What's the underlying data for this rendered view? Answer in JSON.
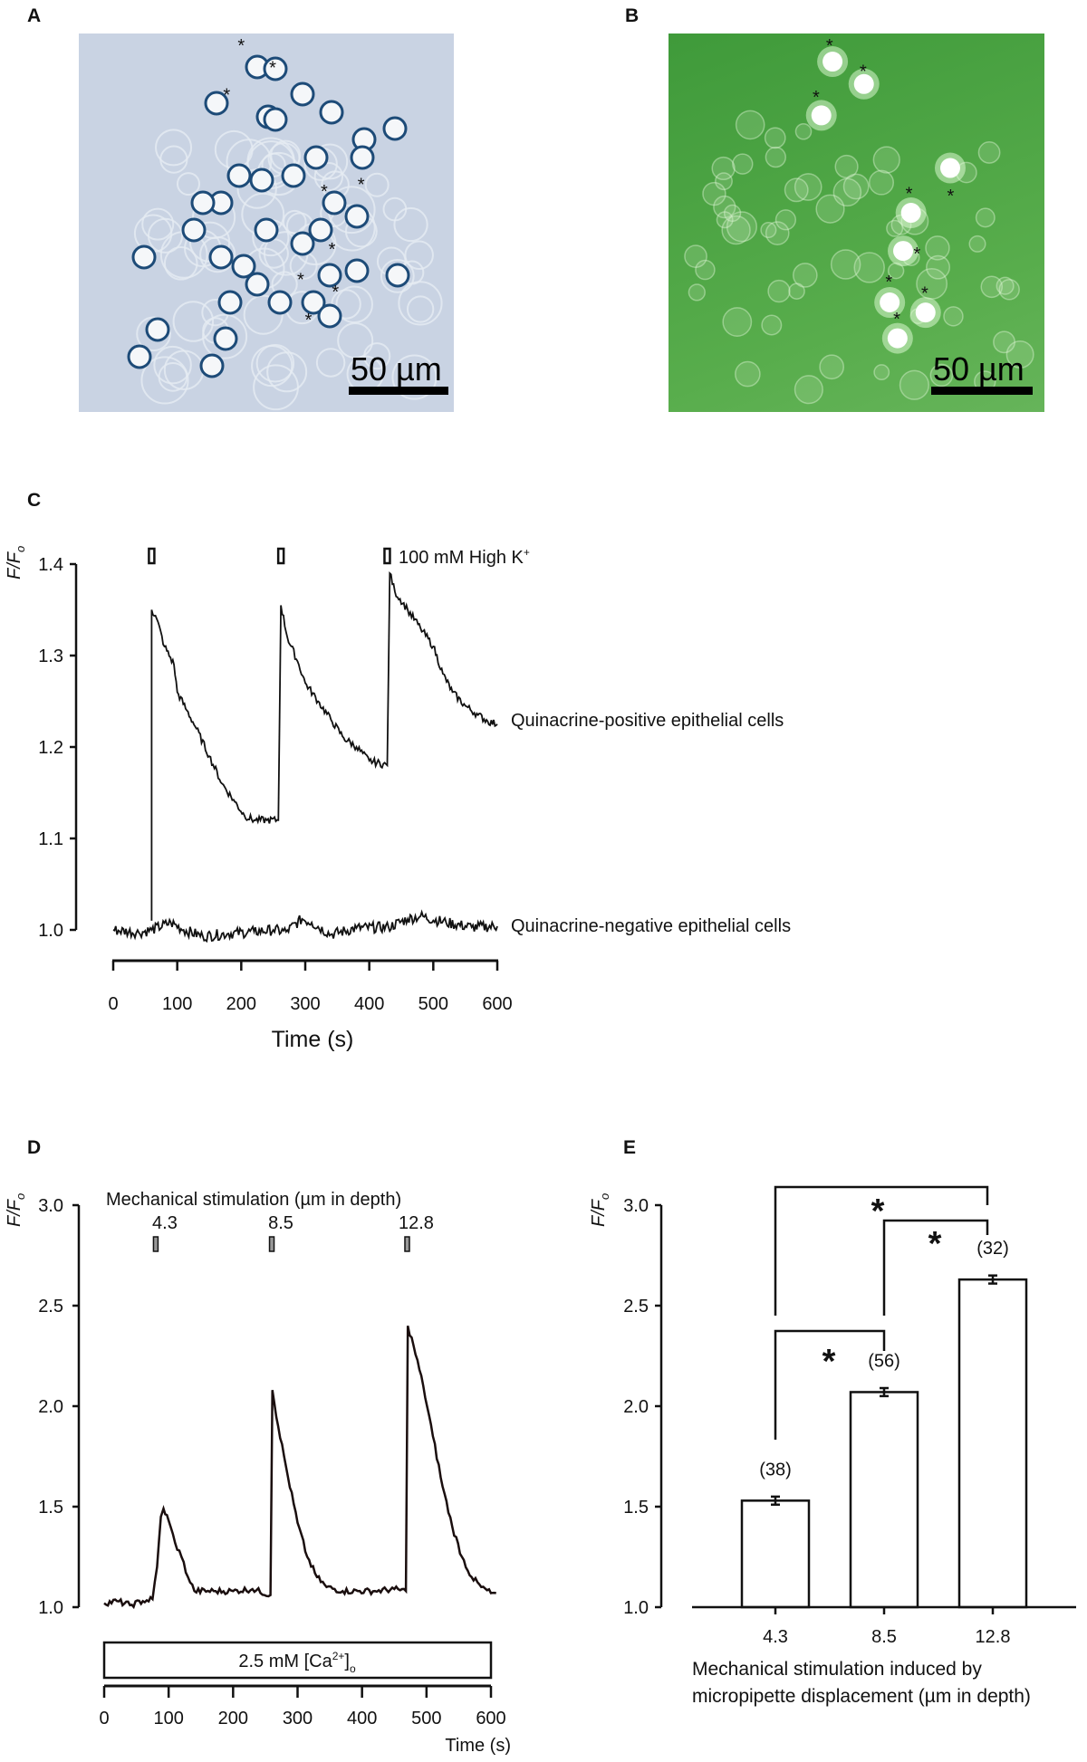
{
  "panels": {
    "A": {
      "label": "A",
      "scale_bar": "50 µm",
      "marker": "*"
    },
    "B": {
      "label": "B",
      "scale_bar": "50 µm",
      "marker": "*"
    },
    "C": {
      "label": "C"
    },
    "D": {
      "label": "D"
    },
    "E": {
      "label": "E"
    }
  },
  "colors": {
    "line": "#111111",
    "photo_A_bg": "#c9d3e3",
    "photo_B_bg": "#4fa545"
  },
  "chart_data": [
    {
      "id": "C",
      "type": "line",
      "ylabel": "F/F",
      "ylabel_sub": "o",
      "xlabel": "Time (s)",
      "xlim": [
        0,
        600
      ],
      "ylim": [
        1.0,
        1.4
      ],
      "xticks": [
        "0",
        "100",
        "200",
        "300",
        "400",
        "500",
        "600"
      ],
      "yticks": [
        "1.0",
        "1.1",
        "1.2",
        "1.3",
        "1.4"
      ],
      "stimulus_label": "100 mM High K",
      "stimulus_label_sup": "+",
      "stimulus_times": [
        60,
        262,
        428
      ],
      "grid": false,
      "series": [
        {
          "name": "Quinacrine-positive epithelial cells",
          "points": [
            [
              60,
              1.01
            ],
            [
              60,
              1.35
            ],
            [
              68,
              1.34
            ],
            [
              80,
              1.31
            ],
            [
              95,
              1.29
            ],
            [
              100,
              1.26
            ],
            [
              115,
              1.24
            ],
            [
              130,
              1.22
            ],
            [
              150,
              1.19
            ],
            [
              170,
              1.16
            ],
            [
              190,
              1.14
            ],
            [
              205,
              1.125
            ],
            [
              220,
              1.12
            ],
            [
              240,
              1.12
            ],
            [
              258,
              1.12
            ],
            [
              262,
              1.355
            ],
            [
              272,
              1.32
            ],
            [
              290,
              1.29
            ],
            [
              300,
              1.27
            ],
            [
              320,
              1.25
            ],
            [
              340,
              1.23
            ],
            [
              360,
              1.21
            ],
            [
              380,
              1.2
            ],
            [
              400,
              1.185
            ],
            [
              428,
              1.18
            ],
            [
              432,
              1.39
            ],
            [
              440,
              1.37
            ],
            [
              460,
              1.35
            ],
            [
              480,
              1.33
            ],
            [
              500,
              1.31
            ],
            [
              515,
              1.28
            ],
            [
              530,
              1.26
            ],
            [
              550,
              1.245
            ],
            [
              570,
              1.235
            ],
            [
              585,
              1.228
            ],
            [
              600,
              1.225
            ]
          ]
        },
        {
          "name": "Quinacrine-negative epithelial cells",
          "points": [
            [
              0,
              1.0
            ],
            [
              40,
              0.997
            ],
            [
              60,
              1.0
            ],
            [
              90,
              1.008
            ],
            [
              110,
              1.0
            ],
            [
              140,
              0.993
            ],
            [
              180,
              0.996
            ],
            [
              220,
              0.998
            ],
            [
              250,
              1.0
            ],
            [
              270,
              0.998
            ],
            [
              295,
              1.012
            ],
            [
              310,
              1.008
            ],
            [
              340,
              0.995
            ],
            [
              380,
              1.002
            ],
            [
              430,
              1.003
            ],
            [
              460,
              1.012
            ],
            [
              480,
              1.015
            ],
            [
              520,
              1.008
            ],
            [
              560,
              1.003
            ],
            [
              600,
              1.004
            ]
          ]
        }
      ]
    },
    {
      "id": "D",
      "type": "line",
      "ylabel": "F/F",
      "ylabel_sub": "o",
      "xlabel": "Time (s)",
      "xlim": [
        0,
        600
      ],
      "ylim": [
        1.0,
        3.0
      ],
      "xticks": [
        "0",
        "100",
        "200",
        "300",
        "400",
        "500",
        "600"
      ],
      "yticks": [
        "1.0",
        "1.5",
        "2.0",
        "2.5",
        "3.0"
      ],
      "stimulus_title": "Mechanical stimulation (µm in depth)",
      "stimuli": [
        {
          "time": 80,
          "label": "4.3"
        },
        {
          "time": 260,
          "label": "8.5"
        },
        {
          "time": 470,
          "label": "12.8"
        }
      ],
      "condition_label": "2.5 mM [Ca",
      "condition_sup": "2+",
      "condition_close": "]",
      "condition_sub": "o",
      "grid": false,
      "series": [
        {
          "points": [
            [
              0,
              1.02
            ],
            [
              20,
              1.03
            ],
            [
              40,
              1.01
            ],
            [
              60,
              1.03
            ],
            [
              75,
              1.04
            ],
            [
              82,
              1.2
            ],
            [
              88,
              1.45
            ],
            [
              92,
              1.49
            ],
            [
              100,
              1.43
            ],
            [
              110,
              1.32
            ],
            [
              120,
              1.25
            ],
            [
              130,
              1.15
            ],
            [
              140,
              1.08
            ],
            [
              170,
              1.08
            ],
            [
              200,
              1.08
            ],
            [
              230,
              1.09
            ],
            [
              258,
              1.06
            ],
            [
              261,
              2.08
            ],
            [
              270,
              1.9
            ],
            [
              285,
              1.65
            ],
            [
              300,
              1.42
            ],
            [
              315,
              1.25
            ],
            [
              330,
              1.15
            ],
            [
              345,
              1.1
            ],
            [
              370,
              1.08
            ],
            [
              420,
              1.08
            ],
            [
              450,
              1.09
            ],
            [
              468,
              1.08
            ],
            [
              471,
              2.4
            ],
            [
              480,
              2.3
            ],
            [
              495,
              2.1
            ],
            [
              510,
              1.85
            ],
            [
              525,
              1.6
            ],
            [
              540,
              1.4
            ],
            [
              555,
              1.25
            ],
            [
              570,
              1.15
            ],
            [
              585,
              1.1
            ],
            [
              600,
              1.07
            ],
            [
              608,
              1.07
            ]
          ]
        }
      ]
    },
    {
      "id": "E",
      "type": "bar",
      "ylabel": "F/F",
      "ylabel_sub": "o",
      "xlabel_lines": [
        "Mechanical stimulation induced by",
        "micropipette displacement (µm in depth)"
      ],
      "ylim": [
        1.0,
        3.0
      ],
      "yticks": [
        "1.0",
        "1.5",
        "2.0",
        "2.5",
        "3.0"
      ],
      "categories": [
        "4.3",
        "8.5",
        "12.8"
      ],
      "values": [
        1.53,
        2.07,
        2.63
      ],
      "errors": [
        0.02,
        0.02,
        0.02
      ],
      "n_labels": [
        "(38)",
        "(56)",
        "(32)"
      ],
      "significance": [
        {
          "pair": [
            "4.3",
            "12.8"
          ],
          "mark": "*"
        },
        {
          "pair": [
            "8.5",
            "12.8"
          ],
          "mark": "*"
        },
        {
          "pair": [
            "4.3",
            "8.5"
          ],
          "mark": "*"
        }
      ],
      "grid": false
    }
  ]
}
